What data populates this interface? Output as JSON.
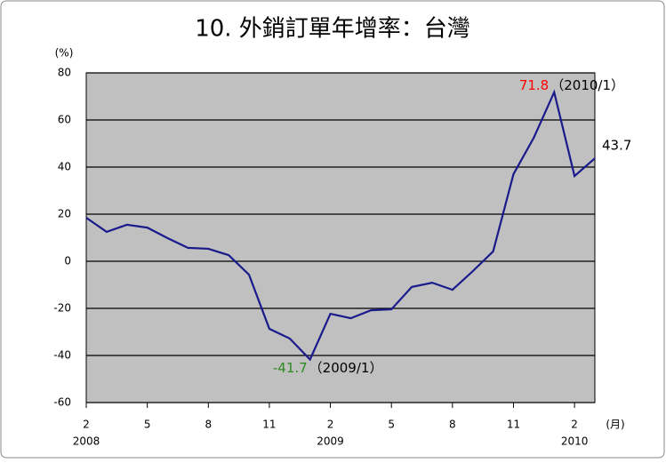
{
  "chart_data": {
    "type": "line",
    "title": "10. 外銷訂單年增率：台灣",
    "y_unit": "(%)",
    "x_unit": "(月)",
    "categories": [
      "2",
      null,
      null,
      "5",
      null,
      null,
      "8",
      null,
      null,
      "11",
      null,
      null,
      "2",
      null,
      null,
      "5",
      null,
      null,
      "8",
      null,
      null,
      "11",
      null,
      null,
      "2",
      null
    ],
    "category_years": [
      "2008",
      null,
      null,
      null,
      null,
      null,
      null,
      null,
      null,
      null,
      null,
      null,
      "2009",
      null,
      null,
      null,
      null,
      null,
      null,
      null,
      null,
      null,
      null,
      null,
      "2010",
      null
    ],
    "series": [
      {
        "color": "#1a1a8c",
        "values": [
          18.5,
          12.5,
          15.5,
          14.3,
          9.8,
          5.7,
          5.3,
          2.6,
          -5.7,
          -28.7,
          -32.8,
          -41.7,
          -22.3,
          -24.2,
          -20.8,
          -20.4,
          -10.9,
          -9.1,
          -12.1,
          -4.2,
          4.2,
          37,
          52.5,
          71.8,
          36.2,
          43.7
        ],
        "value_labels": [
          null,
          null,
          null,
          null,
          null,
          null,
          null,
          null,
          null,
          null,
          null,
          "-41.7",
          null,
          null,
          null,
          null,
          null,
          null,
          null,
          null,
          null,
          null,
          null,
          "71.8",
          null,
          "43.7"
        ],
        "value_label_notes": [
          null,
          null,
          null,
          null,
          null,
          null,
          null,
          null,
          null,
          null,
          null,
          "（2009/1）",
          null,
          null,
          null,
          null,
          null,
          null,
          null,
          null,
          null,
          null,
          null,
          "（2010/1）",
          null,
          null
        ],
        "value_label_colors": [
          null,
          null,
          null,
          null,
          null,
          null,
          null,
          null,
          null,
          null,
          null,
          "#2e8b22",
          null,
          null,
          null,
          null,
          null,
          null,
          null,
          null,
          null,
          null,
          null,
          "#ff0000",
          null,
          "#000000"
        ]
      }
    ],
    "ylim": [
      -60,
      80
    ],
    "yticks": [
      -60,
      -40,
      -20,
      0,
      20,
      40,
      60,
      80
    ],
    "grid": true,
    "plot_background": "#c0c0c0"
  }
}
